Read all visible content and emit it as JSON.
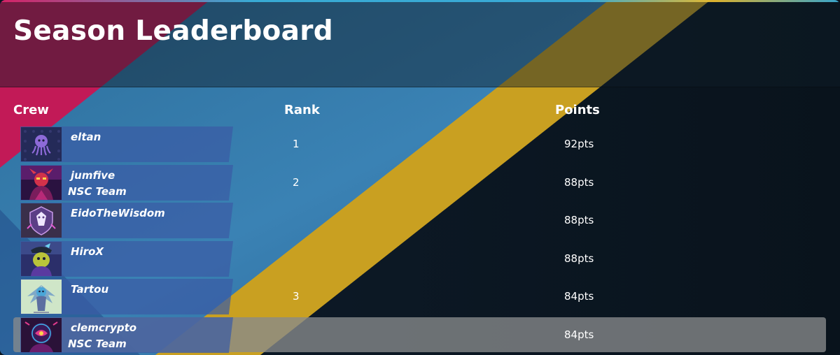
{
  "title": "Season Leaderboard",
  "columns": {
    "crew": "Crew",
    "rank": "Rank",
    "points": "Points"
  },
  "colors": {
    "accent_pink": "#c21a57",
    "accent_blue": "#3a7fb0",
    "accent_gold": "#c9a021",
    "highlight_row": "#888a8c",
    "background": "#0a141e"
  },
  "rows": [
    {
      "name": "eltan",
      "team": "",
      "rank": "1",
      "points": "92pts",
      "avatar": "purple-octopus-avatar",
      "highlighted": false
    },
    {
      "name": "jumfive",
      "team": "NSC Team",
      "rank": "2",
      "points": "88pts",
      "avatar": "red-horned-figure-avatar",
      "highlighted": false
    },
    {
      "name": "EidoTheWisdom",
      "team": "",
      "rank": "",
      "points": "88pts",
      "avatar": "purple-crest-emblem-avatar",
      "highlighted": false
    },
    {
      "name": "HiroX",
      "team": "",
      "rank": "",
      "points": "88pts",
      "avatar": "green-creature-avatar",
      "highlighted": false
    },
    {
      "name": "Tartou",
      "team": "",
      "rank": "3",
      "points": "84pts",
      "avatar": "blue-winged-dragon-avatar",
      "highlighted": false
    },
    {
      "name": "clemcrypto",
      "team": "NSC Team",
      "rank": "",
      "points": "84pts",
      "avatar": "neon-helmet-avatar",
      "highlighted": true
    }
  ]
}
